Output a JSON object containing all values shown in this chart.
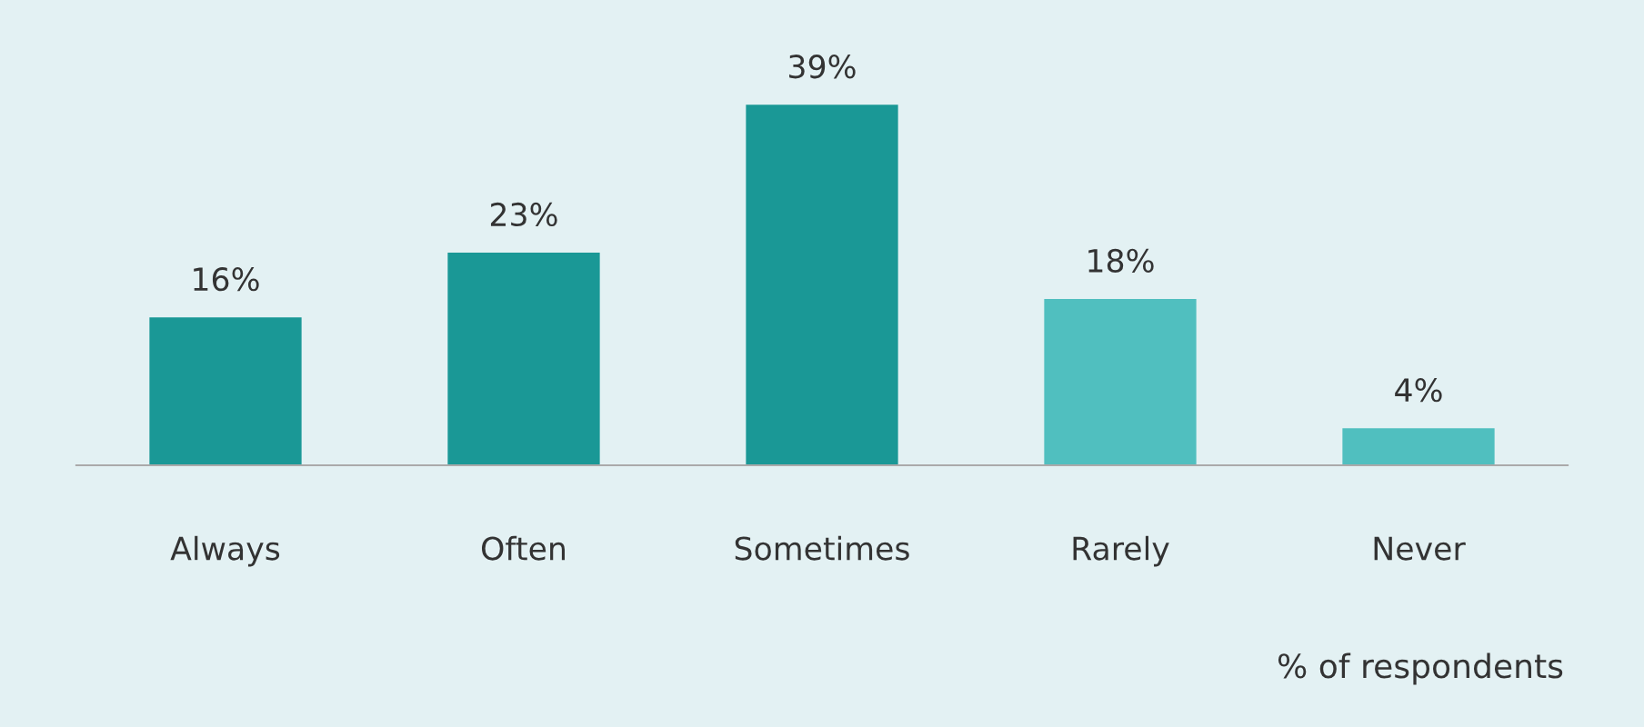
{
  "chart_data": {
    "type": "bar",
    "categories": [
      "Always",
      "Often",
      "Sometimes",
      "Rarely",
      "Never"
    ],
    "values": [
      16,
      23,
      39,
      18,
      4
    ],
    "colors": [
      "#1a9896",
      "#1a9896",
      "#1a9896",
      "#50bfbf",
      "#50bfbf"
    ],
    "value_labels": [
      "16%",
      "23%",
      "39%",
      "18%",
      "4%"
    ],
    "annotations": [
      "% of respondents"
    ]
  }
}
